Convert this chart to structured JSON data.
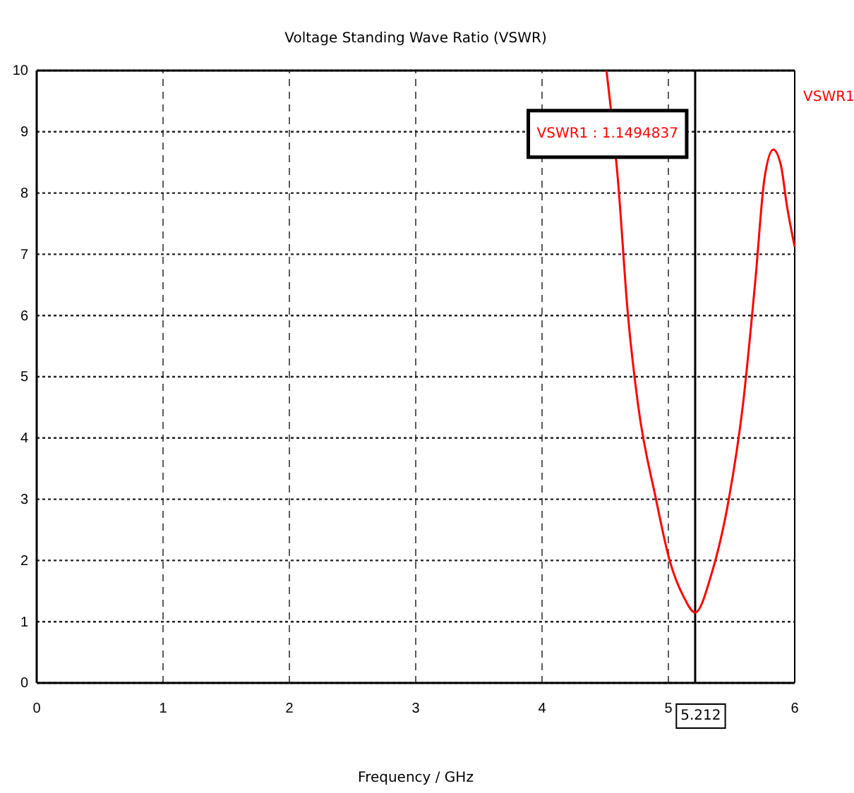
{
  "chart_data": {
    "type": "line",
    "title": "Voltage Standing Wave Ratio (VSWR)",
    "xlabel": "Frequency / GHz",
    "series": [
      {
        "name": "VSWR1",
        "color": "#ff0000",
        "x": [
          4.51,
          4.6,
          4.68,
          4.76,
          4.9,
          5.01,
          5.12,
          5.212,
          5.34,
          5.48,
          5.59,
          5.69,
          5.76,
          5.83,
          5.89,
          5.94,
          6.0
        ],
        "values": [
          10,
          8.23,
          6.01,
          4.54,
          3.02,
          2.0,
          1.41,
          1.15,
          1.77,
          3.02,
          4.54,
          6.61,
          8.23,
          8.71,
          8.46,
          7.77,
          7.12
        ]
      }
    ],
    "xlim": [
      0,
      6
    ],
    "xticks": [
      0,
      1,
      2,
      3,
      4,
      5,
      6
    ],
    "ylim": [
      0,
      10
    ],
    "yticks": [
      0,
      1,
      2,
      3,
      4,
      5,
      6,
      7,
      8,
      9,
      10
    ],
    "grid": true,
    "legend": "right",
    "marker": "none",
    "line_style": "solid",
    "ref_lines": [
      {
        "axis": "x",
        "value": 5.212,
        "label": "5.212",
        "color": "#000000"
      }
    ],
    "annotations": [
      "VSWR1 : 1.1494837"
    ]
  }
}
